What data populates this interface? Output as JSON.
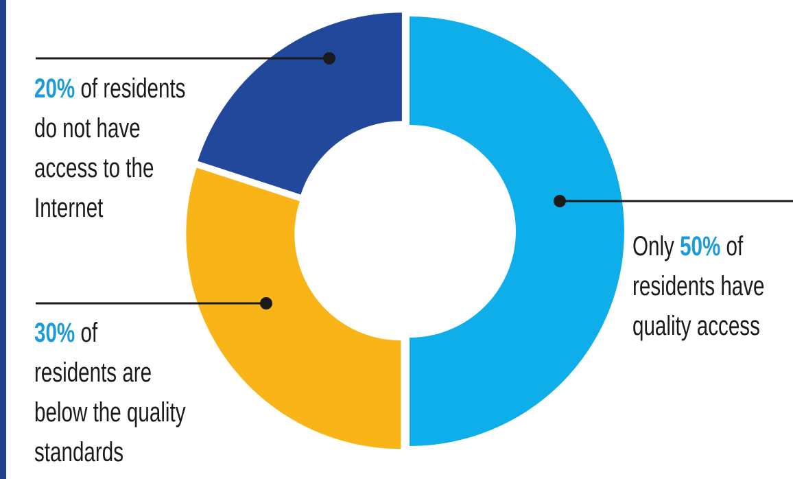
{
  "chart_data": {
    "type": "pie",
    "categories": [
      "residents have quality access",
      "residents are below the quality standards",
      "residents do not have access to the Internet"
    ],
    "values": [
      50,
      30,
      20
    ],
    "colors": [
      "#0eaeea",
      "#f9b518",
      "#22489c"
    ]
  },
  "labels": {
    "internet": {
      "pct": "20%",
      "lines": [
        " of residents",
        "do not have",
        "access to the",
        "Internet"
      ]
    },
    "below": {
      "pct": "30%",
      "lines": [
        " of",
        "residents are",
        "below the quality",
        "standards"
      ]
    },
    "quality": {
      "prefix": "Only ",
      "pct": "50%",
      "lines": [
        " of",
        "residents have",
        "quality access"
      ]
    }
  },
  "colors": {
    "accent_text": "#1b9bd7",
    "leader_line": "#1a1a1a",
    "border": "#22418f"
  }
}
